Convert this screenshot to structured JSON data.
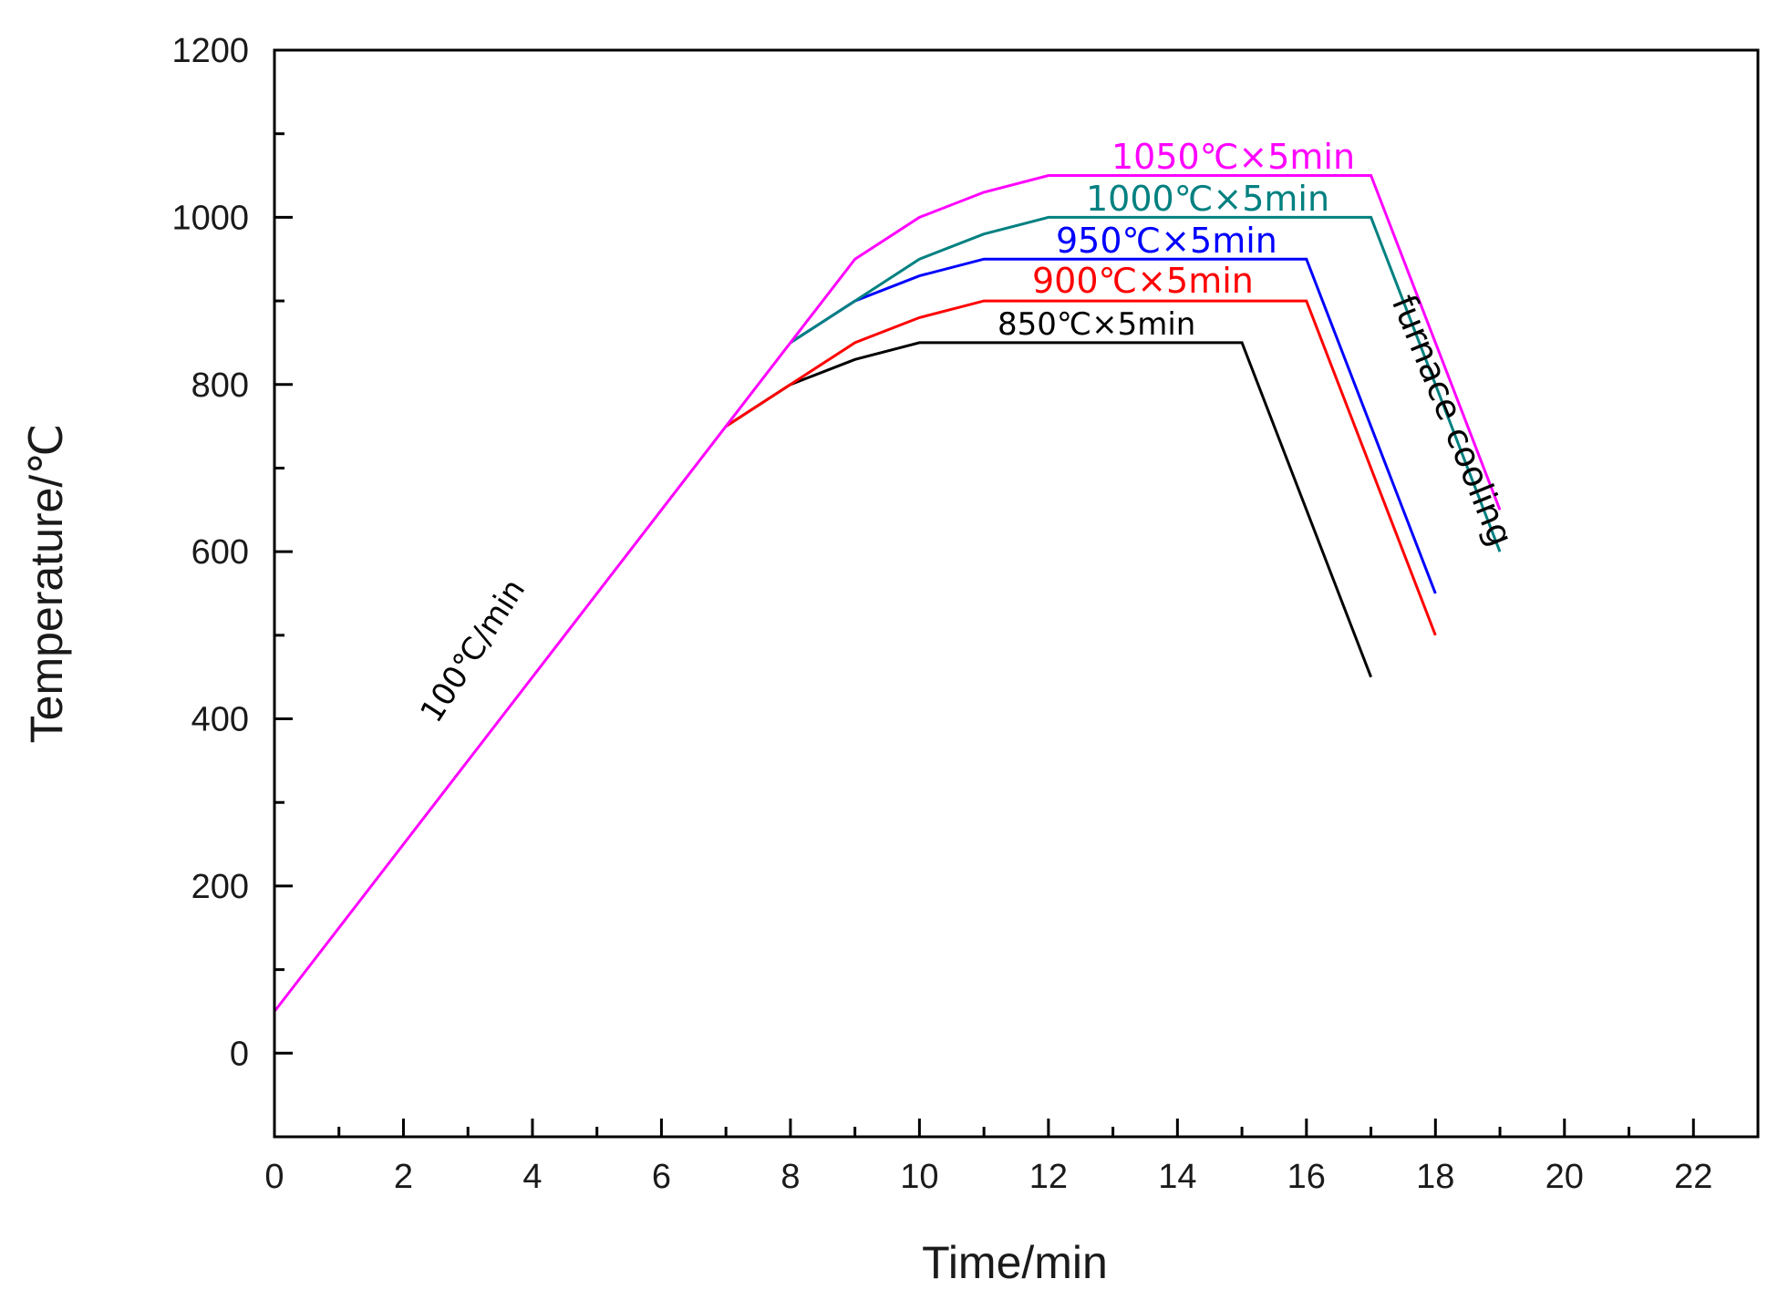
{
  "chart_data": {
    "type": "line",
    "title": "",
    "xlabel": "Time/min",
    "ylabel": "Temperature/℃",
    "xlim": [
      0,
      23
    ],
    "ylim": [
      -100,
      1200
    ],
    "x_major_ticks": [
      0,
      2,
      4,
      6,
      8,
      10,
      12,
      14,
      16,
      18,
      20,
      22
    ],
    "y_major_ticks": [
      0,
      200,
      400,
      600,
      800,
      1000,
      1200
    ],
    "x_tick_labels": [
      "0",
      "2",
      "4",
      "6",
      "8",
      "10",
      "12",
      "14",
      "16",
      "18",
      "20",
      "22"
    ],
    "y_tick_labels": [
      "0",
      "200",
      "400",
      "600",
      "800",
      "1000",
      "1200"
    ],
    "series": [
      {
        "name": "850℃×5min",
        "color": "#000000",
        "points": [
          [
            7,
            750
          ],
          [
            8,
            800
          ],
          [
            9,
            830
          ],
          [
            10,
            850
          ],
          [
            15,
            850
          ],
          [
            17,
            450
          ]
        ]
      },
      {
        "name": "900℃×5min",
        "color": "#ff0000",
        "points": [
          [
            7,
            750
          ],
          [
            8,
            800
          ],
          [
            9,
            850
          ],
          [
            10,
            880
          ],
          [
            11,
            900
          ],
          [
            16,
            900
          ],
          [
            18,
            500
          ]
        ]
      },
      {
        "name": "950℃×5min",
        "color": "#0000ff",
        "points": [
          [
            8,
            850
          ],
          [
            9,
            900
          ],
          [
            10,
            930
          ],
          [
            11,
            950
          ],
          [
            16,
            950
          ],
          [
            18,
            550
          ]
        ]
      },
      {
        "name": "1000℃×5min",
        "color": "#008080",
        "points": [
          [
            8,
            850
          ],
          [
            9,
            900
          ],
          [
            10,
            950
          ],
          [
            11,
            980
          ],
          [
            12,
            1000
          ],
          [
            17,
            1000
          ],
          [
            19,
            600
          ]
        ]
      },
      {
        "name": "1050℃×5min",
        "color": "#ff00ff",
        "points": [
          [
            0,
            50
          ],
          [
            7,
            750
          ],
          [
            8,
            850
          ],
          [
            9,
            950
          ],
          [
            10,
            1000
          ],
          [
            11,
            1030
          ],
          [
            12,
            1050
          ],
          [
            17,
            1050
          ],
          [
            19,
            650
          ]
        ]
      }
    ],
    "annotations": {
      "ramp_rate": "100℃/min",
      "cooling": "furnace cooling",
      "label_850": "850℃×5min",
      "label_900": "900℃×5min",
      "label_950": "950℃×5min",
      "label_1000": "1000℃×5min",
      "label_1050": "1050℃×5min"
    }
  }
}
